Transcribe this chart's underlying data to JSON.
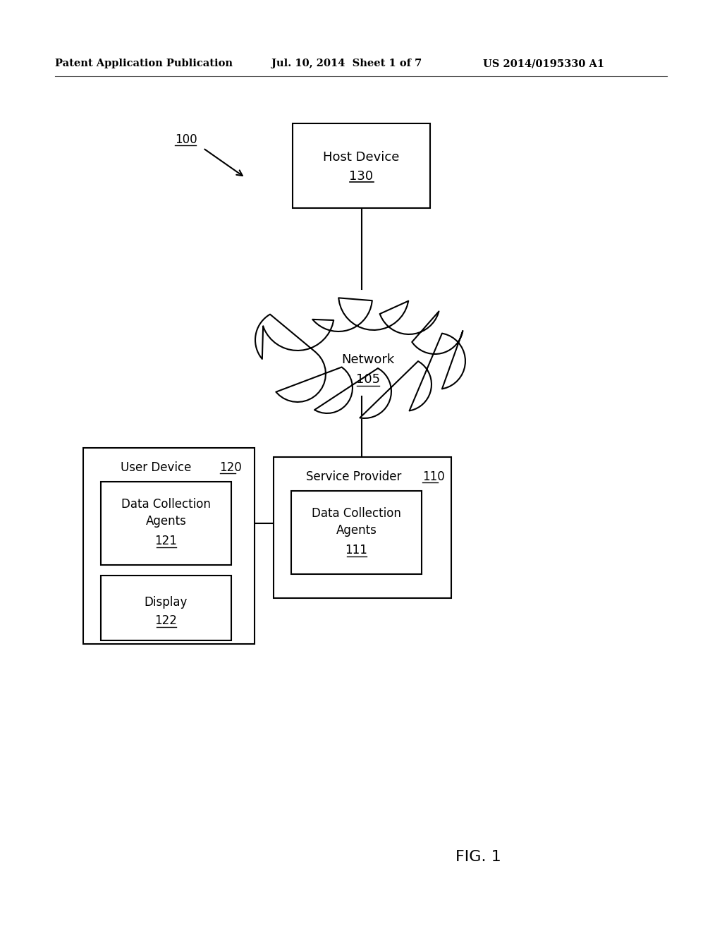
{
  "bg_color": "#ffffff",
  "header_left": "Patent Application Publication",
  "header_mid": "Jul. 10, 2014  Sheet 1 of 7",
  "header_right": "US 2014/0195330 A1",
  "fig_label": "FIG. 1",
  "diagram_label": "100",
  "host_device_label": "Host Device",
  "host_device_num": "130",
  "network_label": "Network",
  "network_num": "105",
  "user_device_label": "User Device",
  "user_device_num": "120",
  "sp_label": "Service Provider",
  "sp_num": "110",
  "dc_agents_left_label": "Data Collection\nAgents",
  "dc_agents_left_num": "121",
  "display_label": "Display",
  "display_num": "122",
  "dc_agents_right_label": "Data Collection\nAgents",
  "dc_agents_right_num": "111",
  "text_color": "#000000",
  "box_edge_color": "#000000",
  "line_color": "#000000"
}
